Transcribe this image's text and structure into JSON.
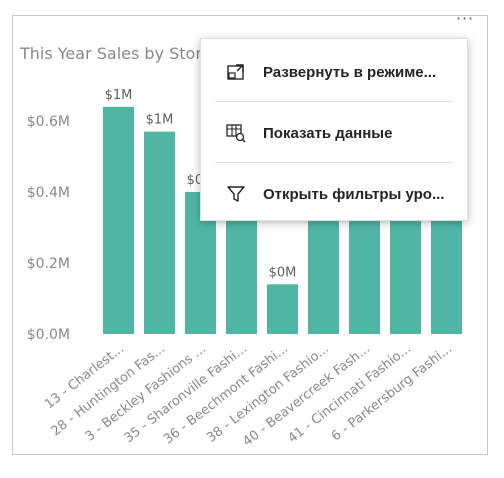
{
  "visual": {
    "title": "This Year Sales by Store",
    "more_icon": "ellipsis-icon",
    "more_label": "···"
  },
  "chart_data": {
    "type": "bar",
    "title": "This Year Sales by Store",
    "categories": [
      "13 - Charlest...",
      "28 - Huntington Fas...",
      "3 - Beckley Fashions ...",
      "35 - Sharonville Fashi...",
      "36 - Beechmont Fashi...",
      "38 - Lexington Fashio...",
      "40 - Beavercreek Fash...",
      "41 - Cincinnati Fashio...",
      "6 - Parkersburg Fashi..."
    ],
    "values": [
      0.64,
      0.57,
      0.4,
      0.38,
      0.14,
      0.38,
      0.38,
      0.38,
      0.38
    ],
    "data_labels": [
      "$1M",
      "$1M",
      "$0M",
      "",
      "$0M",
      "",
      "",
      "",
      ""
    ],
    "y_ticks": [
      "$0.0M",
      "$0.2M",
      "$0.4M",
      "$0.6M"
    ],
    "ylim": [
      0,
      0.7
    ],
    "bar_color": "#4fb6a3",
    "grid": false
  },
  "menu": {
    "items": [
      {
        "icon": "focus-mode-icon",
        "label": "Развернуть в режиме..."
      },
      {
        "icon": "show-data-icon",
        "label": "Показать данные"
      },
      {
        "icon": "filter-icon",
        "label": "Открыть фильтры уро..."
      }
    ]
  }
}
